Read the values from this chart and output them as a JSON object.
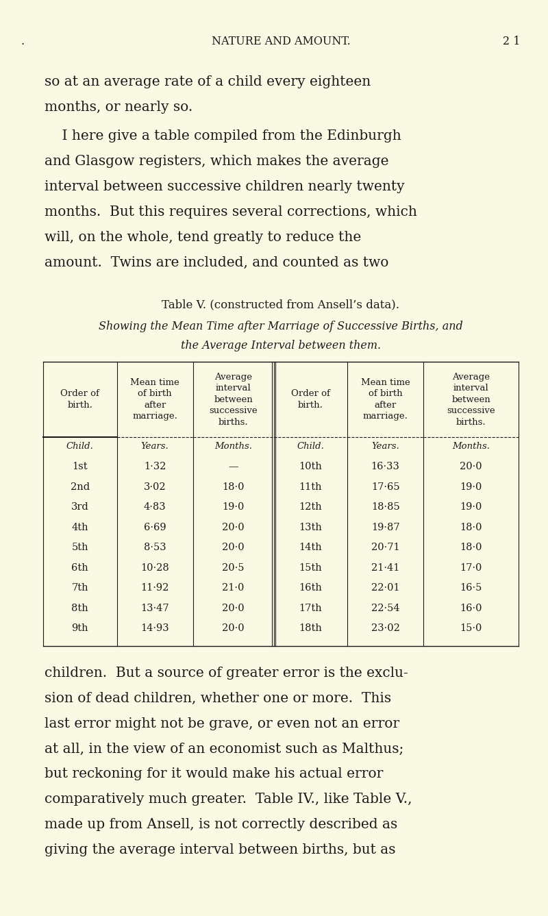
{
  "bg_color": "#faf9e4",
  "text_color": "#1a1a1a",
  "page_width": 8.0,
  "page_height": 13.37,
  "header_text": "NATURE AND AMOUNT.",
  "page_number": "2 1",
  "para1_lines": [
    "so at an average rate of a child every eighteen",
    "months, or nearly so."
  ],
  "para2_lines": [
    "    I here give a table compiled from the Edinburgh",
    "and Glasgow registers, which makes the average",
    "interval between successive children nearly twenty",
    "months.  But this requires several corrections, which",
    "will, on the whole, tend greatly to reduce the",
    "amount.  Twins are included, and counted as two"
  ],
  "table_title": "Table V. (constructed from Ansell’s data).",
  "table_subtitle1": "Showing the Mean Time after Marriage of Successive Births, and",
  "table_subtitle2": "the Average Interval between them.",
  "col_headers": [
    "Order of\nbirth.",
    "Mean time\nof birth\nafter\nmarriage.",
    "Average\ninterval\nbetween\nsuccessive\nbirths.",
    "Order of\nbirth.",
    "Mean time\nof birth\nafter\nmarriage.",
    "Average\ninterval\nbetween\nsuccessive\nbirths."
  ],
  "subheaders_left": [
    "Child.",
    "Years.",
    "Months."
  ],
  "subheaders_right": [
    "Child.",
    "Years.",
    "Months."
  ],
  "table_data_left": [
    [
      "1st",
      "1·32",
      "—"
    ],
    [
      "2nd",
      "3·02",
      "18·0"
    ],
    [
      "3rd",
      "4·83",
      "19·0"
    ],
    [
      "4th",
      "6·69",
      "20·0"
    ],
    [
      "5th",
      "8·53",
      "20·0"
    ],
    [
      "6th",
      "10·28",
      "20·5"
    ],
    [
      "7th",
      "11·92",
      "21·0"
    ],
    [
      "8th",
      "13·47",
      "20·0"
    ],
    [
      "9th",
      "14·93",
      "20·0"
    ]
  ],
  "table_data_right": [
    [
      "10th",
      "16·33",
      "20·0"
    ],
    [
      "11th",
      "17·65",
      "19·0"
    ],
    [
      "12th",
      "18·85",
      "19·0"
    ],
    [
      "13th",
      "19·87",
      "18·0"
    ],
    [
      "14th",
      "20·71",
      "18·0"
    ],
    [
      "15th",
      "21·41",
      "17·0"
    ],
    [
      "16th",
      "22·01",
      "16·5"
    ],
    [
      "17th",
      "22·54",
      "16·0"
    ],
    [
      "18th",
      "23·02",
      "15·0"
    ]
  ],
  "para3_lines": [
    "children.  But a source of greater error is the exclu-",
    "sion of dead children, whether one or more.  This",
    "last error might not be grave, or even not an error",
    "at all, in the view of an economist such as Malthus;",
    "but reckoning for it would make his actual error",
    "comparatively much greater.  Table IV., like Table V.,",
    "made up from Ansell, is not correctly described as",
    "giving the average interval between births, but as"
  ]
}
